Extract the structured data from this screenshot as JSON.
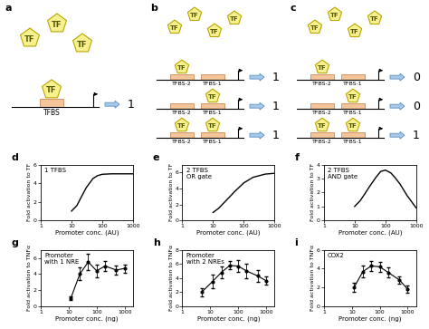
{
  "diagrams": [
    {
      "panel": "a",
      "tf_label": "TF",
      "sites": [
        "TFBS"
      ],
      "rows": [
        {
          "bound": [
            "TFBS"
          ],
          "output": "1"
        }
      ]
    },
    {
      "panel": "b",
      "tf_label": "TF",
      "sites": [
        "TFBS-2",
        "TFBS-1"
      ],
      "rows": [
        {
          "bound": [
            "TFBS-2"
          ],
          "output": "1"
        },
        {
          "bound": [
            "TFBS-1"
          ],
          "output": "1"
        },
        {
          "bound": [
            "TFBS-2",
            "TFBS-1"
          ],
          "output": "1"
        }
      ]
    },
    {
      "panel": "c",
      "tf_label": "TF",
      "sites": [
        "TFBS-2",
        "TFBS-1"
      ],
      "rows": [
        {
          "bound": [
            "TFBS-2"
          ],
          "output": "0"
        },
        {
          "bound": [
            "TFBS-1"
          ],
          "output": "0"
        },
        {
          "bound": [
            "TFBS-2",
            "TFBS-1"
          ],
          "output": "1"
        }
      ]
    }
  ],
  "chart_data": [
    {
      "type": "line",
      "panel": "d",
      "title": "1 TFBS",
      "x_label": "Promoter conc. (AU)",
      "y_label": "Fold activation to TF",
      "x": [
        10,
        15,
        20,
        30,
        50,
        70,
        100,
        200,
        500,
        1000
      ],
      "values": [
        1,
        1.6,
        2.4,
        3.5,
        4.5,
        4.8,
        4.95,
        5,
        5,
        5
      ],
      "color": "#000000",
      "log": "x",
      "xlim": [
        1,
        1000
      ],
      "xticks": [
        1,
        10,
        100,
        1000
      ],
      "ylim": [
        0,
        6
      ],
      "yticks": [
        0,
        2,
        4,
        6
      ]
    },
    {
      "type": "line",
      "panel": "e",
      "title": "2 TFBS\nOR gate",
      "x_label": "Promoter conc. (AU)",
      "y_label": "Fold activation to TF",
      "x": [
        10,
        15,
        20,
        30,
        50,
        100,
        200,
        500,
        1000
      ],
      "values": [
        1,
        1.5,
        2,
        2.7,
        3.6,
        4.7,
        5.4,
        5.8,
        5.9
      ],
      "color": "#000000",
      "log": "x",
      "xlim": [
        1,
        1000
      ],
      "xticks": [
        1,
        10,
        100,
        1000
      ],
      "ylim": [
        0,
        7
      ],
      "yticks": [
        0,
        2,
        4,
        6
      ]
    },
    {
      "type": "line",
      "panel": "f",
      "title": "2 TFBS\nAND gate",
      "x_label": "Promoter conc. (AU)",
      "y_label": "Fold activation to TF",
      "x": [
        10,
        15,
        20,
        30,
        50,
        70,
        100,
        150,
        200,
        300,
        500,
        1000
      ],
      "values": [
        1,
        1.4,
        1.8,
        2.4,
        3.1,
        3.5,
        3.6,
        3.4,
        3.1,
        2.6,
        1.8,
        0.9
      ],
      "color": "#000000",
      "log": "x",
      "xlim": [
        1,
        1000
      ],
      "xticks": [
        1,
        10,
        100,
        1000
      ],
      "ylim": [
        0,
        4
      ],
      "yticks": [
        0,
        1,
        2,
        3,
        4
      ]
    },
    {
      "type": "line",
      "panel": "g",
      "title": "Promoter\nwith 1 NRE",
      "x_label": "Promoter conc. (ng)",
      "y_label": "Fold activation to TNFα",
      "x": [
        12,
        25,
        50,
        100,
        200,
        500,
        1000
      ],
      "values": [
        1,
        4,
        5.5,
        4.4,
        5,
        4.5,
        4.7
      ],
      "errors": [
        0.2,
        0.8,
        1,
        0.8,
        0.6,
        0.6,
        0.5
      ],
      "color": "#000000",
      "marker": "o",
      "log": "x",
      "xlim": [
        1,
        2000
      ],
      "xticks": [
        1,
        10,
        100,
        1000
      ],
      "ylim": [
        0,
        7
      ],
      "yticks": [
        0,
        2,
        4,
        6
      ]
    },
    {
      "type": "line",
      "panel": "h",
      "title": "Promoter\nwith 2 NREs",
      "x_label": "Promoter conc. (ng)",
      "y_label": "Fold activation to TNFα",
      "x": [
        5,
        12,
        25,
        50,
        100,
        200,
        500,
        1000
      ],
      "values": [
        2,
        3.5,
        4.8,
        5.8,
        5.7,
        5,
        4.3,
        3.6
      ],
      "errors": [
        0.6,
        1,
        0.8,
        0.6,
        0.8,
        1,
        0.8,
        0.6
      ],
      "color": "#000000",
      "marker": "o",
      "log": "x",
      "xlim": [
        1,
        2000
      ],
      "xticks": [
        1,
        10,
        100,
        1000
      ],
      "ylim": [
        0,
        8
      ],
      "yticks": [
        0,
        2,
        4,
        6,
        8
      ]
    },
    {
      "type": "line",
      "panel": "i",
      "title": "COX2",
      "x_label": "Promoter conc. (ng)",
      "y_label": "Fold activation to TNFα",
      "x": [
        12,
        25,
        50,
        100,
        200,
        500,
        1000
      ],
      "values": [
        2,
        3.7,
        4.3,
        4.2,
        3.6,
        2.8,
        1.8
      ],
      "errors": [
        0.5,
        0.6,
        0.5,
        0.5,
        0.5,
        0.4,
        0.4
      ],
      "color": "#000000",
      "marker": "o",
      "log": "x",
      "xlim": [
        1,
        2000
      ],
      "xticks": [
        1,
        10,
        100,
        1000
      ],
      "ylim": [
        0,
        6
      ],
      "yticks": [
        0,
        2,
        4,
        6
      ]
    }
  ]
}
